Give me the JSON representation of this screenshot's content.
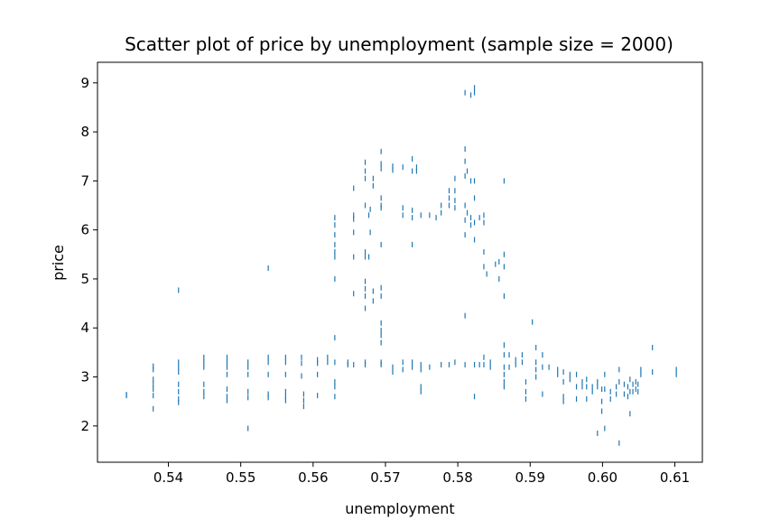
{
  "chart_data": {
    "type": "scatter",
    "title": "Scatter plot of price by unemployment (sample size = 2000)",
    "xlabel": "unemployment",
    "ylabel": "price",
    "xlim": [
      0.5302,
      0.6138
    ],
    "ylim": [
      1.26,
      9.42
    ],
    "xticks": [
      0.54,
      0.55,
      0.56,
      0.57,
      0.58,
      0.59,
      0.6,
      0.61
    ],
    "xtick_labels": [
      "0.54",
      "0.55",
      "0.56",
      "0.57",
      "0.58",
      "0.59",
      "0.60",
      "0.61"
    ],
    "yticks": [
      2,
      3,
      4,
      5,
      6,
      7,
      8,
      9
    ],
    "ytick_labels": [
      "2",
      "3",
      "4",
      "5",
      "6",
      "7",
      "8",
      "9"
    ],
    "grid": false,
    "marker_color": "#1f77b4",
    "series": [
      {
        "points": [
          [
            0.5342,
            2.62
          ],
          [
            0.5342,
            2.64
          ],
          [
            0.5379,
            3.22
          ],
          [
            0.5379,
            3.15
          ],
          [
            0.5379,
            2.95
          ],
          [
            0.5379,
            2.85
          ],
          [
            0.5379,
            2.75
          ],
          [
            0.5379,
            2.62
          ],
          [
            0.5379,
            2.35
          ],
          [
            0.5414,
            4.77
          ],
          [
            0.5414,
            3.3
          ],
          [
            0.5414,
            3.2
          ],
          [
            0.5414,
            3.1
          ],
          [
            0.5414,
            2.85
          ],
          [
            0.5414,
            2.7
          ],
          [
            0.5414,
            2.55
          ],
          [
            0.5414,
            2.48
          ],
          [
            0.5449,
            3.4
          ],
          [
            0.5449,
            3.3
          ],
          [
            0.5449,
            3.2
          ],
          [
            0.5449,
            2.85
          ],
          [
            0.5449,
            2.7
          ],
          [
            0.5449,
            2.6
          ],
          [
            0.5481,
            3.4
          ],
          [
            0.5481,
            3.3
          ],
          [
            0.5481,
            3.2
          ],
          [
            0.5481,
            3.05
          ],
          [
            0.5481,
            2.75
          ],
          [
            0.5481,
            2.6
          ],
          [
            0.5481,
            2.52
          ],
          [
            0.551,
            3.3
          ],
          [
            0.551,
            3.2
          ],
          [
            0.551,
            3.05
          ],
          [
            0.551,
            2.7
          ],
          [
            0.551,
            2.58
          ],
          [
            0.551,
            1.95
          ],
          [
            0.5538,
            5.22
          ],
          [
            0.5538,
            3.4
          ],
          [
            0.5538,
            3.3
          ],
          [
            0.5538,
            3.05
          ],
          [
            0.5538,
            2.65
          ],
          [
            0.5538,
            2.58
          ],
          [
            0.5562,
            3.4
          ],
          [
            0.5562,
            3.3
          ],
          [
            0.5562,
            3.05
          ],
          [
            0.5562,
            2.7
          ],
          [
            0.5562,
            2.6
          ],
          [
            0.5562,
            2.52
          ],
          [
            0.5584,
            3.4
          ],
          [
            0.5584,
            3.28
          ],
          [
            0.5584,
            3.02
          ],
          [
            0.5587,
            2.65
          ],
          [
            0.5587,
            2.52
          ],
          [
            0.5587,
            2.4
          ],
          [
            0.5606,
            3.35
          ],
          [
            0.5606,
            3.28
          ],
          [
            0.5606,
            3.05
          ],
          [
            0.5606,
            2.62
          ],
          [
            0.562,
            3.4
          ],
          [
            0.562,
            3.3
          ],
          [
            0.563,
            6.25
          ],
          [
            0.563,
            6.1
          ],
          [
            0.563,
            5.9
          ],
          [
            0.563,
            5.7
          ],
          [
            0.563,
            5.55
          ],
          [
            0.563,
            5.45
          ],
          [
            0.563,
            5.0
          ],
          [
            0.563,
            3.8
          ],
          [
            0.563,
            3.3
          ],
          [
            0.563,
            2.9
          ],
          [
            0.563,
            2.8
          ],
          [
            0.563,
            2.6
          ],
          [
            0.5648,
            3.3
          ],
          [
            0.5648,
            3.25
          ],
          [
            0.5656,
            6.85
          ],
          [
            0.5656,
            6.3
          ],
          [
            0.5656,
            6.22
          ],
          [
            0.5656,
            5.95
          ],
          [
            0.5656,
            5.45
          ],
          [
            0.5656,
            4.7
          ],
          [
            0.5656,
            3.25
          ],
          [
            0.5672,
            7.38
          ],
          [
            0.5672,
            7.2
          ],
          [
            0.5672,
            7.05
          ],
          [
            0.5672,
            6.5
          ],
          [
            0.5672,
            5.55
          ],
          [
            0.5672,
            5.45
          ],
          [
            0.5672,
            4.95
          ],
          [
            0.5672,
            4.8
          ],
          [
            0.5672,
            4.65
          ],
          [
            0.5672,
            4.4
          ],
          [
            0.5672,
            3.3
          ],
          [
            0.5672,
            3.25
          ],
          [
            0.5677,
            6.3
          ],
          [
            0.5677,
            5.45
          ],
          [
            0.5679,
            6.42
          ],
          [
            0.5679,
            5.95
          ],
          [
            0.5683,
            7.05
          ],
          [
            0.5683,
            6.9
          ],
          [
            0.5683,
            4.75
          ],
          [
            0.5683,
            4.55
          ],
          [
            0.5694,
            7.6
          ],
          [
            0.5694,
            7.35
          ],
          [
            0.5694,
            7.25
          ],
          [
            0.5694,
            6.65
          ],
          [
            0.5694,
            6.5
          ],
          [
            0.5694,
            6.45
          ],
          [
            0.5694,
            5.7
          ],
          [
            0.5694,
            4.82
          ],
          [
            0.5694,
            4.65
          ],
          [
            0.5694,
            4.1
          ],
          [
            0.5694,
            3.95
          ],
          [
            0.5694,
            3.85
          ],
          [
            0.5694,
            3.7
          ],
          [
            0.5694,
            3.3
          ],
          [
            0.5694,
            3.25
          ],
          [
            0.571,
            7.3
          ],
          [
            0.571,
            7.22
          ],
          [
            0.571,
            3.2
          ],
          [
            0.571,
            3.1
          ],
          [
            0.5724,
            7.28
          ],
          [
            0.5724,
            6.45
          ],
          [
            0.5724,
            6.3
          ],
          [
            0.5724,
            3.3
          ],
          [
            0.5724,
            3.15
          ],
          [
            0.5737,
            7.45
          ],
          [
            0.5737,
            7.2
          ],
          [
            0.5737,
            6.4
          ],
          [
            0.5737,
            6.25
          ],
          [
            0.5737,
            5.7
          ],
          [
            0.5737,
            3.3
          ],
          [
            0.5737,
            3.2
          ],
          [
            0.5743,
            7.28
          ],
          [
            0.5743,
            7.2
          ],
          [
            0.5749,
            6.3
          ],
          [
            0.5749,
            3.25
          ],
          [
            0.5749,
            3.15
          ],
          [
            0.5749,
            2.8
          ],
          [
            0.5749,
            2.7
          ],
          [
            0.5761,
            6.3
          ],
          [
            0.5761,
            3.2
          ],
          [
            0.577,
            6.25
          ],
          [
            0.5777,
            6.5
          ],
          [
            0.5777,
            6.35
          ],
          [
            0.5777,
            3.25
          ],
          [
            0.5788,
            6.8
          ],
          [
            0.5788,
            6.65
          ],
          [
            0.5788,
            6.5
          ],
          [
            0.5788,
            3.25
          ],
          [
            0.5796,
            7.05
          ],
          [
            0.5796,
            6.8
          ],
          [
            0.5796,
            6.6
          ],
          [
            0.5796,
            6.45
          ],
          [
            0.5796,
            3.3
          ],
          [
            0.581,
            8.8
          ],
          [
            0.581,
            7.65
          ],
          [
            0.581,
            7.4
          ],
          [
            0.581,
            7.1
          ],
          [
            0.581,
            6.5
          ],
          [
            0.581,
            6.2
          ],
          [
            0.581,
            5.9
          ],
          [
            0.581,
            4.25
          ],
          [
            0.581,
            3.25
          ],
          [
            0.5813,
            7.2
          ],
          [
            0.5813,
            6.35
          ],
          [
            0.5818,
            8.75
          ],
          [
            0.5818,
            7.0
          ],
          [
            0.5818,
            6.25
          ],
          [
            0.5818,
            6.1
          ],
          [
            0.5823,
            8.9
          ],
          [
            0.5823,
            8.8
          ],
          [
            0.5823,
            7.0
          ],
          [
            0.5823,
            6.65
          ],
          [
            0.5823,
            6.15
          ],
          [
            0.5823,
            5.8
          ],
          [
            0.5823,
            3.25
          ],
          [
            0.5823,
            2.6
          ],
          [
            0.583,
            6.25
          ],
          [
            0.583,
            3.25
          ],
          [
            0.5836,
            6.3
          ],
          [
            0.5836,
            6.15
          ],
          [
            0.5836,
            5.55
          ],
          [
            0.5836,
            5.25
          ],
          [
            0.5836,
            3.4
          ],
          [
            0.5836,
            3.25
          ],
          [
            0.584,
            5.1
          ],
          [
            0.5845,
            3.3
          ],
          [
            0.5845,
            3.2
          ],
          [
            0.5852,
            5.3
          ],
          [
            0.5857,
            5.35
          ],
          [
            0.5857,
            5.0
          ],
          [
            0.5864,
            7.0
          ],
          [
            0.5864,
            5.5
          ],
          [
            0.5864,
            5.25
          ],
          [
            0.5864,
            4.65
          ],
          [
            0.5864,
            3.65
          ],
          [
            0.5864,
            3.45
          ],
          [
            0.5864,
            3.2
          ],
          [
            0.5864,
            3.05
          ],
          [
            0.5864,
            2.9
          ],
          [
            0.5864,
            2.8
          ],
          [
            0.5871,
            3.45
          ],
          [
            0.5871,
            3.2
          ],
          [
            0.588,
            3.35
          ],
          [
            0.588,
            3.25
          ],
          [
            0.5889,
            3.45
          ],
          [
            0.5889,
            3.3
          ],
          [
            0.5894,
            2.9
          ],
          [
            0.5894,
            2.7
          ],
          [
            0.5894,
            2.55
          ],
          [
            0.5903,
            4.12
          ],
          [
            0.5908,
            3.6
          ],
          [
            0.5908,
            3.3
          ],
          [
            0.5908,
            3.15
          ],
          [
            0.5908,
            3.0
          ],
          [
            0.5917,
            3.45
          ],
          [
            0.5917,
            3.2
          ],
          [
            0.5917,
            2.65
          ],
          [
            0.5926,
            3.2
          ],
          [
            0.5938,
            3.15
          ],
          [
            0.5938,
            3.05
          ],
          [
            0.5946,
            3.1
          ],
          [
            0.5946,
            2.9
          ],
          [
            0.5946,
            2.6
          ],
          [
            0.5946,
            2.5
          ],
          [
            0.5955,
            3.05
          ],
          [
            0.5955,
            2.95
          ],
          [
            0.5964,
            3.05
          ],
          [
            0.5964,
            2.8
          ],
          [
            0.5964,
            2.55
          ],
          [
            0.5972,
            2.9
          ],
          [
            0.5972,
            2.8
          ],
          [
            0.5978,
            2.95
          ],
          [
            0.5978,
            2.8
          ],
          [
            0.5978,
            2.55
          ],
          [
            0.5986,
            2.8
          ],
          [
            0.5986,
            2.7
          ],
          [
            0.5993,
            2.9
          ],
          [
            0.5993,
            2.8
          ],
          [
            0.5993,
            1.85
          ],
          [
            0.5999,
            2.75
          ],
          [
            0.5999,
            2.5
          ],
          [
            0.5999,
            2.3
          ],
          [
            0.6003,
            3.05
          ],
          [
            0.6003,
            2.75
          ],
          [
            0.6003,
            1.95
          ],
          [
            0.6011,
            2.7
          ],
          [
            0.6011,
            2.55
          ],
          [
            0.6019,
            2.8
          ],
          [
            0.6019,
            2.65
          ],
          [
            0.6023,
            3.15
          ],
          [
            0.6023,
            2.9
          ],
          [
            0.6023,
            1.65
          ],
          [
            0.603,
            2.85
          ],
          [
            0.603,
            2.65
          ],
          [
            0.6035,
            2.8
          ],
          [
            0.6035,
            2.6
          ],
          [
            0.6038,
            2.95
          ],
          [
            0.6038,
            2.7
          ],
          [
            0.6038,
            2.25
          ],
          [
            0.6042,
            2.85
          ],
          [
            0.6042,
            2.7
          ],
          [
            0.6046,
            2.9
          ],
          [
            0.6046,
            2.75
          ],
          [
            0.6049,
            2.85
          ],
          [
            0.6049,
            2.7
          ],
          [
            0.6053,
            3.15
          ],
          [
            0.6053,
            3.05
          ],
          [
            0.6069,
            3.6
          ],
          [
            0.6069,
            3.1
          ],
          [
            0.6102,
            3.15
          ],
          [
            0.6102,
            3.05
          ]
        ]
      }
    ]
  }
}
